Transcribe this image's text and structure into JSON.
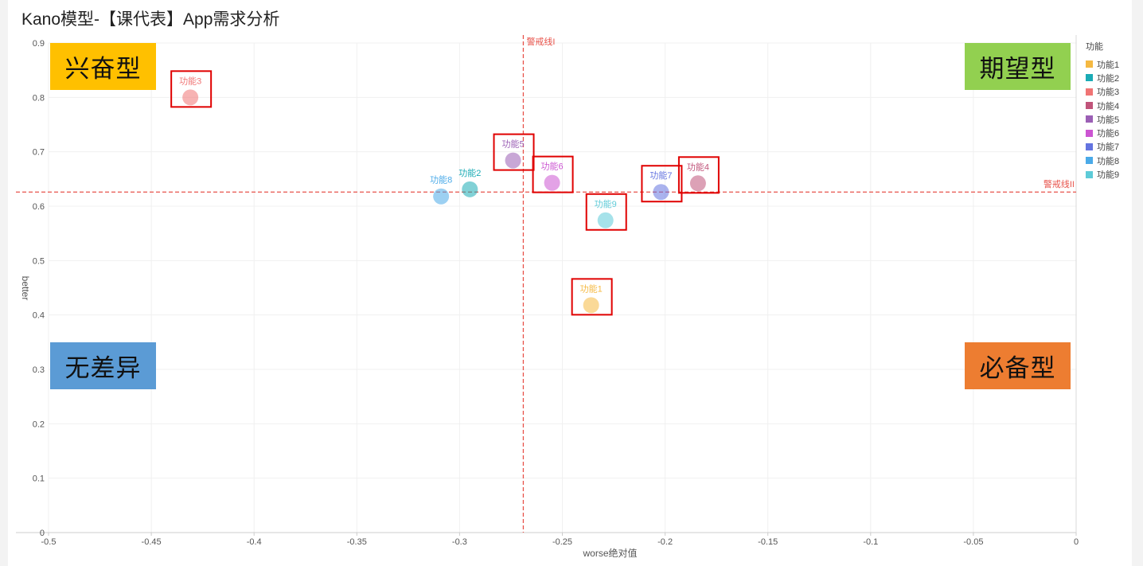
{
  "title": "Kano模型-【课代表】App需求分析",
  "quadrants": {
    "top_left": "兴奋型",
    "top_right": "期望型",
    "bottom_left": "无差异",
    "bottom_right": "必备型"
  },
  "colors": {
    "top_left": "#ffc000",
    "top_right": "#92d050",
    "bottom_left": "#5b9bd5",
    "bottom_right": "#ed7d31",
    "highlight_box": "#e00000",
    "warning_line": "#e8534b"
  },
  "chart_data": {
    "type": "scatter",
    "xlabel": "worse绝对值",
    "ylabel": "better",
    "xlim": [
      -0.5,
      0
    ],
    "ylim": [
      0,
      0.9
    ],
    "x_ticks": [
      "-0.5",
      "-0.45",
      "-0.4",
      "-0.35",
      "-0.3",
      "-0.25",
      "-0.2",
      "-0.15",
      "-0.1",
      "-0.05",
      "0"
    ],
    "x_tick_values": [
      -0.5,
      -0.45,
      -0.4,
      -0.35,
      -0.3,
      -0.25,
      -0.2,
      -0.15,
      -0.1,
      -0.05,
      0
    ],
    "y_ticks": [
      "0",
      "0.1",
      "0.2",
      "0.3",
      "0.4",
      "0.5",
      "0.6",
      "0.7",
      "0.8",
      "0.9"
    ],
    "y_tick_values": [
      0,
      0.1,
      0.2,
      0.3,
      0.4,
      0.5,
      0.6,
      0.7,
      0.8,
      0.9
    ],
    "legend_title": "功能",
    "legend_position": "right",
    "grid": true,
    "reference_lines": [
      {
        "axis": "x",
        "value": -0.269,
        "label": "警戒线I"
      },
      {
        "axis": "y",
        "value": 0.626,
        "label": "警戒线II"
      }
    ],
    "series": [
      {
        "name": "功能1",
        "x": -0.236,
        "y": 0.418,
        "color": "#f5b942",
        "highlighted": true
      },
      {
        "name": "功能2",
        "x": -0.295,
        "y": 0.631,
        "color": "#1aabb5",
        "highlighted": false
      },
      {
        "name": "功能3",
        "x": -0.431,
        "y": 0.8,
        "color": "#f07474",
        "highlighted": true
      },
      {
        "name": "功能4",
        "x": -0.184,
        "y": 0.642,
        "color": "#c0547a",
        "highlighted": true
      },
      {
        "name": "功能5",
        "x": -0.274,
        "y": 0.684,
        "color": "#9b5fb5",
        "highlighted": true
      },
      {
        "name": "功能6",
        "x": -0.255,
        "y": 0.643,
        "color": "#cc55d2",
        "highlighted": true
      },
      {
        "name": "功能7",
        "x": -0.202,
        "y": 0.626,
        "color": "#6474e0",
        "highlighted": true
      },
      {
        "name": "功能8",
        "x": -0.309,
        "y": 0.618,
        "color": "#4aaae8",
        "highlighted": false
      },
      {
        "name": "功能9",
        "x": -0.229,
        "y": 0.574,
        "color": "#5dcbd8",
        "highlighted": true
      }
    ]
  }
}
